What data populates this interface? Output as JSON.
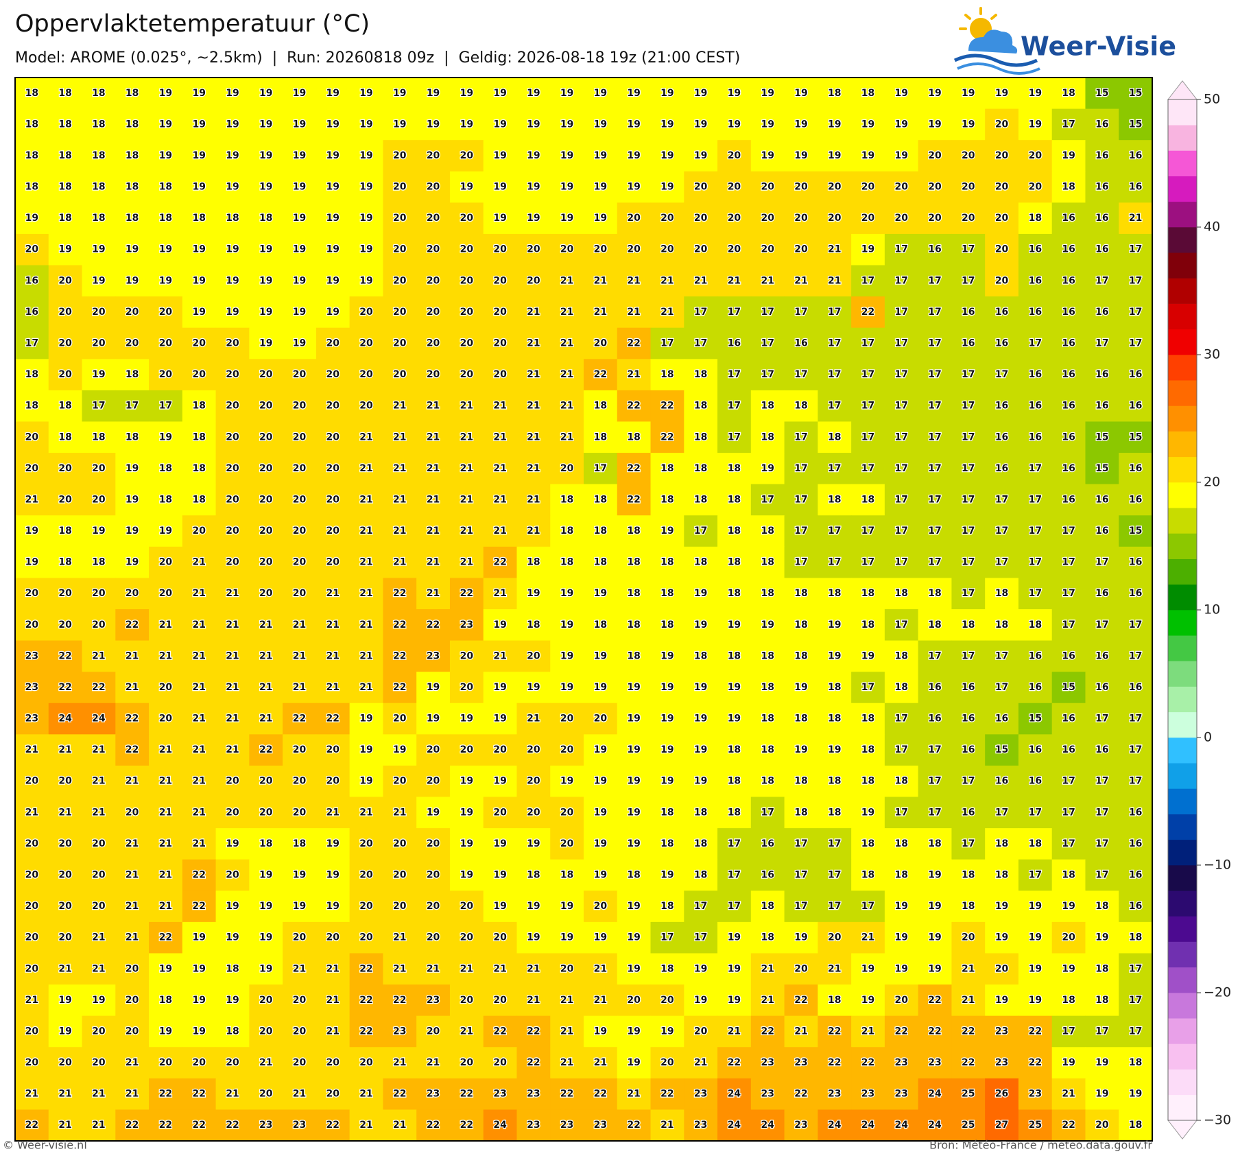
{
  "header": {
    "title": "Oppervlaktetemperatuur (°C)",
    "subtitle": "Model: AROME (0.025°, ~2.5km)  |  Run: 20260818 09z  |  Geldig: 2026-08-18 19z (21:00 CEST)"
  },
  "logo": {
    "text": "Weer-Visie"
  },
  "map": {
    "rows": [
      [
        18,
        18,
        18,
        18,
        19,
        19,
        19,
        19,
        19,
        19,
        19,
        19,
        19,
        19,
        19,
        19,
        19,
        19,
        19,
        19,
        19,
        19,
        19,
        19,
        18,
        18,
        19,
        19,
        19,
        19,
        19,
        18,
        15,
        15
      ],
      [
        18,
        18,
        18,
        18,
        19,
        19,
        19,
        19,
        19,
        19,
        19,
        19,
        19,
        19,
        19,
        19,
        19,
        19,
        19,
        19,
        19,
        19,
        19,
        19,
        19,
        19,
        19,
        19,
        19,
        20,
        19,
        17,
        16,
        15
      ],
      [
        18,
        18,
        18,
        18,
        19,
        19,
        19,
        19,
        19,
        19,
        19,
        20,
        20,
        20,
        19,
        19,
        19,
        19,
        19,
        19,
        19,
        20,
        19,
        19,
        19,
        19,
        19,
        20,
        20,
        20,
        20,
        19,
        16,
        16
      ],
      [
        18,
        18,
        18,
        18,
        18,
        19,
        19,
        19,
        19,
        19,
        19,
        20,
        20,
        19,
        19,
        19,
        19,
        19,
        19,
        19,
        20,
        20,
        20,
        20,
        20,
        20,
        20,
        20,
        20,
        20,
        20,
        18,
        16,
        16
      ],
      [
        19,
        18,
        18,
        18,
        18,
        18,
        18,
        18,
        19,
        19,
        19,
        20,
        20,
        20,
        19,
        19,
        19,
        19,
        20,
        20,
        20,
        20,
        20,
        20,
        20,
        20,
        20,
        20,
        20,
        20,
        18,
        16,
        16,
        21
      ],
      [
        20,
        19,
        19,
        19,
        19,
        19,
        19,
        19,
        19,
        19,
        19,
        20,
        20,
        20,
        20,
        20,
        20,
        20,
        20,
        20,
        20,
        20,
        20,
        20,
        21,
        19,
        17,
        16,
        17,
        20,
        16,
        16,
        16,
        17
      ],
      [
        16,
        20,
        19,
        19,
        19,
        19,
        19,
        19,
        19,
        19,
        19,
        20,
        20,
        20,
        20,
        20,
        21,
        21,
        21,
        21,
        21,
        21,
        21,
        21,
        21,
        17,
        17,
        17,
        17,
        20,
        16,
        16,
        17,
        17
      ],
      [
        16,
        20,
        20,
        20,
        20,
        19,
        19,
        19,
        19,
        19,
        20,
        20,
        20,
        20,
        20,
        21,
        21,
        21,
        21,
        21,
        17,
        17,
        17,
        17,
        17,
        22,
        17,
        17,
        16,
        16,
        16,
        16,
        16,
        17
      ],
      [
        17,
        20,
        20,
        20,
        20,
        20,
        20,
        19,
        19,
        20,
        20,
        20,
        20,
        20,
        20,
        21,
        21,
        20,
        22,
        17,
        17,
        16,
        17,
        16,
        17,
        17,
        17,
        17,
        16,
        16,
        17,
        16,
        17,
        17
      ],
      [
        18,
        20,
        19,
        18,
        20,
        20,
        20,
        20,
        20,
        20,
        20,
        20,
        20,
        20,
        20,
        21,
        21,
        22,
        21,
        18,
        18,
        17,
        17,
        17,
        17,
        17,
        17,
        17,
        17,
        17,
        16,
        16,
        16,
        16
      ],
      [
        18,
        18,
        17,
        17,
        17,
        18,
        20,
        20,
        20,
        20,
        20,
        21,
        21,
        21,
        21,
        21,
        21,
        18,
        22,
        22,
        18,
        17,
        18,
        18,
        17,
        17,
        17,
        17,
        17,
        16,
        16,
        16,
        16,
        16
      ],
      [
        20,
        18,
        18,
        18,
        19,
        18,
        20,
        20,
        20,
        20,
        21,
        21,
        21,
        21,
        21,
        21,
        21,
        18,
        18,
        22,
        18,
        17,
        18,
        17,
        18,
        17,
        17,
        17,
        17,
        16,
        16,
        16,
        15,
        15
      ],
      [
        20,
        20,
        20,
        19,
        18,
        18,
        20,
        20,
        20,
        20,
        21,
        21,
        21,
        21,
        21,
        21,
        20,
        17,
        22,
        18,
        18,
        18,
        19,
        17,
        17,
        17,
        17,
        17,
        17,
        16,
        17,
        16,
        15,
        16
      ],
      [
        21,
        20,
        20,
        19,
        18,
        18,
        20,
        20,
        20,
        20,
        21,
        21,
        21,
        21,
        21,
        21,
        18,
        18,
        22,
        18,
        18,
        18,
        17,
        17,
        18,
        18,
        17,
        17,
        17,
        17,
        17,
        16,
        16,
        16
      ],
      [
        19,
        18,
        19,
        19,
        19,
        20,
        20,
        20,
        20,
        20,
        21,
        21,
        21,
        21,
        21,
        21,
        18,
        18,
        18,
        19,
        17,
        18,
        18,
        17,
        17,
        17,
        17,
        17,
        17,
        17,
        17,
        17,
        16,
        15
      ],
      [
        19,
        18,
        18,
        19,
        20,
        21,
        20,
        20,
        20,
        20,
        21,
        21,
        21,
        21,
        22,
        18,
        18,
        18,
        18,
        18,
        18,
        18,
        18,
        17,
        17,
        17,
        17,
        17,
        17,
        17,
        17,
        17,
        17,
        16
      ],
      [
        20,
        20,
        20,
        20,
        20,
        21,
        21,
        20,
        20,
        21,
        21,
        22,
        21,
        22,
        21,
        19,
        19,
        19,
        18,
        18,
        19,
        18,
        18,
        18,
        18,
        18,
        18,
        18,
        17,
        18,
        17,
        17,
        16,
        16
      ],
      [
        20,
        20,
        20,
        22,
        21,
        21,
        21,
        21,
        21,
        21,
        21,
        22,
        22,
        23,
        19,
        18,
        19,
        18,
        18,
        18,
        19,
        19,
        19,
        18,
        19,
        18,
        17,
        18,
        18,
        18,
        18,
        17,
        17,
        17
      ],
      [
        23,
        22,
        21,
        21,
        21,
        21,
        21,
        21,
        21,
        21,
        21,
        22,
        23,
        20,
        21,
        20,
        19,
        19,
        18,
        19,
        18,
        18,
        18,
        18,
        19,
        19,
        18,
        17,
        17,
        17,
        16,
        16,
        16,
        17
      ],
      [
        23,
        22,
        22,
        21,
        20,
        21,
        21,
        21,
        21,
        21,
        21,
        22,
        19,
        20,
        19,
        19,
        19,
        19,
        19,
        19,
        19,
        19,
        18,
        19,
        18,
        17,
        18,
        16,
        16,
        17,
        16,
        15,
        16,
        16
      ],
      [
        23,
        24,
        24,
        22,
        20,
        21,
        21,
        21,
        22,
        22,
        19,
        20,
        19,
        19,
        19,
        21,
        20,
        20,
        19,
        19,
        19,
        19,
        18,
        18,
        18,
        18,
        17,
        16,
        16,
        16,
        15,
        16,
        17,
        17
      ],
      [
        21,
        21,
        21,
        22,
        21,
        21,
        21,
        22,
        20,
        20,
        19,
        19,
        20,
        20,
        20,
        20,
        20,
        19,
        19,
        19,
        19,
        18,
        18,
        19,
        19,
        18,
        17,
        17,
        16,
        15,
        16,
        16,
        16,
        17
      ],
      [
        20,
        20,
        21,
        21,
        21,
        21,
        20,
        20,
        20,
        20,
        19,
        20,
        20,
        19,
        19,
        20,
        19,
        19,
        19,
        19,
        19,
        18,
        18,
        18,
        18,
        18,
        18,
        17,
        17,
        16,
        16,
        17,
        17,
        17
      ],
      [
        21,
        21,
        21,
        20,
        21,
        21,
        20,
        20,
        20,
        21,
        21,
        21,
        19,
        19,
        20,
        20,
        20,
        19,
        19,
        18,
        18,
        18,
        17,
        18,
        18,
        19,
        17,
        17,
        16,
        17,
        17,
        17,
        17,
        16
      ],
      [
        20,
        20,
        20,
        21,
        21,
        21,
        19,
        18,
        18,
        19,
        20,
        20,
        20,
        19,
        19,
        19,
        20,
        19,
        19,
        18,
        18,
        17,
        16,
        17,
        17,
        18,
        18,
        18,
        17,
        18,
        18,
        17,
        17,
        16
      ],
      [
        20,
        20,
        20,
        21,
        21,
        22,
        20,
        19,
        19,
        19,
        20,
        20,
        20,
        19,
        19,
        18,
        18,
        19,
        18,
        19,
        18,
        17,
        16,
        17,
        17,
        18,
        18,
        19,
        18,
        18,
        17,
        18,
        17,
        16
      ],
      [
        20,
        20,
        20,
        21,
        21,
        22,
        19,
        19,
        19,
        19,
        20,
        20,
        20,
        20,
        19,
        19,
        19,
        20,
        19,
        18,
        17,
        17,
        18,
        17,
        17,
        17,
        19,
        19,
        18,
        19,
        19,
        19,
        18,
        16
      ],
      [
        20,
        20,
        21,
        21,
        22,
        19,
        19,
        19,
        20,
        20,
        20,
        21,
        20,
        20,
        20,
        19,
        19,
        19,
        19,
        17,
        17,
        19,
        18,
        19,
        20,
        21,
        19,
        19,
        20,
        19,
        19,
        20,
        19,
        18
      ],
      [
        20,
        21,
        21,
        20,
        19,
        19,
        18,
        19,
        21,
        21,
        22,
        21,
        21,
        21,
        21,
        21,
        20,
        21,
        19,
        18,
        19,
        19,
        21,
        20,
        21,
        19,
        19,
        19,
        21,
        20,
        19,
        19,
        18,
        17
      ],
      [
        21,
        19,
        19,
        20,
        18,
        19,
        19,
        20,
        20,
        21,
        22,
        22,
        23,
        20,
        20,
        21,
        21,
        21,
        20,
        20,
        19,
        19,
        21,
        22,
        18,
        19,
        20,
        22,
        21,
        19,
        19,
        18,
        18,
        17
      ],
      [
        20,
        19,
        20,
        20,
        19,
        19,
        18,
        20,
        20,
        21,
        22,
        23,
        20,
        21,
        22,
        22,
        21,
        19,
        19,
        19,
        20,
        21,
        22,
        21,
        22,
        21,
        22,
        22,
        22,
        23,
        22,
        17,
        17,
        17
      ],
      [
        20,
        20,
        20,
        21,
        20,
        20,
        20,
        21,
        20,
        20,
        20,
        21,
        21,
        20,
        20,
        22,
        21,
        21,
        19,
        20,
        21,
        22,
        23,
        23,
        22,
        22,
        23,
        23,
        22,
        23,
        22,
        19,
        19,
        18
      ],
      [
        21,
        21,
        21,
        21,
        22,
        22,
        21,
        20,
        21,
        20,
        21,
        22,
        23,
        22,
        23,
        23,
        22,
        22,
        21,
        22,
        23,
        24,
        23,
        22,
        23,
        23,
        23,
        24,
        25,
        26,
        23,
        21,
        19,
        19
      ],
      [
        22,
        21,
        21,
        22,
        22,
        22,
        22,
        23,
        23,
        22,
        21,
        21,
        22,
        22,
        24,
        23,
        23,
        23,
        22,
        21,
        23,
        24,
        24,
        23,
        24,
        24,
        24,
        24,
        25,
        27,
        25,
        22,
        20,
        18
      ]
    ]
  },
  "colorbar": {
    "lim": [
      -30,
      50
    ],
    "ticks": [
      {
        "value": -30,
        "label": "−30"
      },
      {
        "value": -20,
        "label": "−20"
      },
      {
        "value": -10,
        "label": "−10"
      },
      0,
      10,
      20,
      30,
      40,
      50
    ],
    "colors": [
      "#fff0fc",
      "#fcdcf8",
      "#f8c0f0",
      "#e8a0e8",
      "#c878dc",
      "#a050c8",
      "#7030b0",
      "#4c0a90",
      "#2c0a70",
      "#180a4a",
      "#00207a",
      "#0040a8",
      "#0070d0",
      "#10a0e8",
      "#30c0ff",
      "#ccffdd",
      "#a8f0a8",
      "#7ddc7d",
      "#44c844",
      "#00c000",
      "#008c00",
      "#4caf00",
      "#8cc800",
      "#c8dc00",
      "#ffff00",
      "#ffdc00",
      "#ffb700",
      "#ff9000",
      "#ff6a00",
      "#ff4000",
      "#f00000",
      "#d80000",
      "#b00000",
      "#80000a",
      "#5a0a36",
      "#9c1080",
      "#d61bbe",
      "#f557d6",
      "#f8b4e0",
      "#fee6f7"
    ]
  },
  "footer": {
    "left": "© Weer-visie.nl",
    "right": "Bron: Météo-France / meteo.data.gouv.fr"
  }
}
